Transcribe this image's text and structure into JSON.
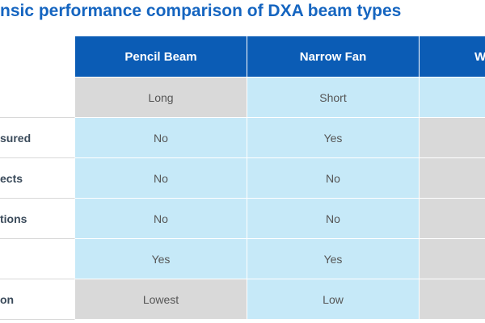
{
  "title": "nsic performance comparison of DXA beam types",
  "table": {
    "headers": [
      "Pencil Beam",
      "Narrow Fan",
      "W"
    ],
    "rows": [
      {
        "cells": [
          "Long",
          "Short"
        ]
      },
      {
        "label": "sured",
        "cells": [
          "No",
          "Yes"
        ]
      },
      {
        "label": "ects",
        "cells": [
          "No",
          "No"
        ]
      },
      {
        "label": "tions",
        "cells": [
          "No",
          "No"
        ]
      },
      {
        "cells": [
          "Yes",
          "Yes"
        ]
      },
      {
        "label": "on",
        "cells": [
          "Lowest",
          "Low"
        ]
      }
    ]
  }
}
